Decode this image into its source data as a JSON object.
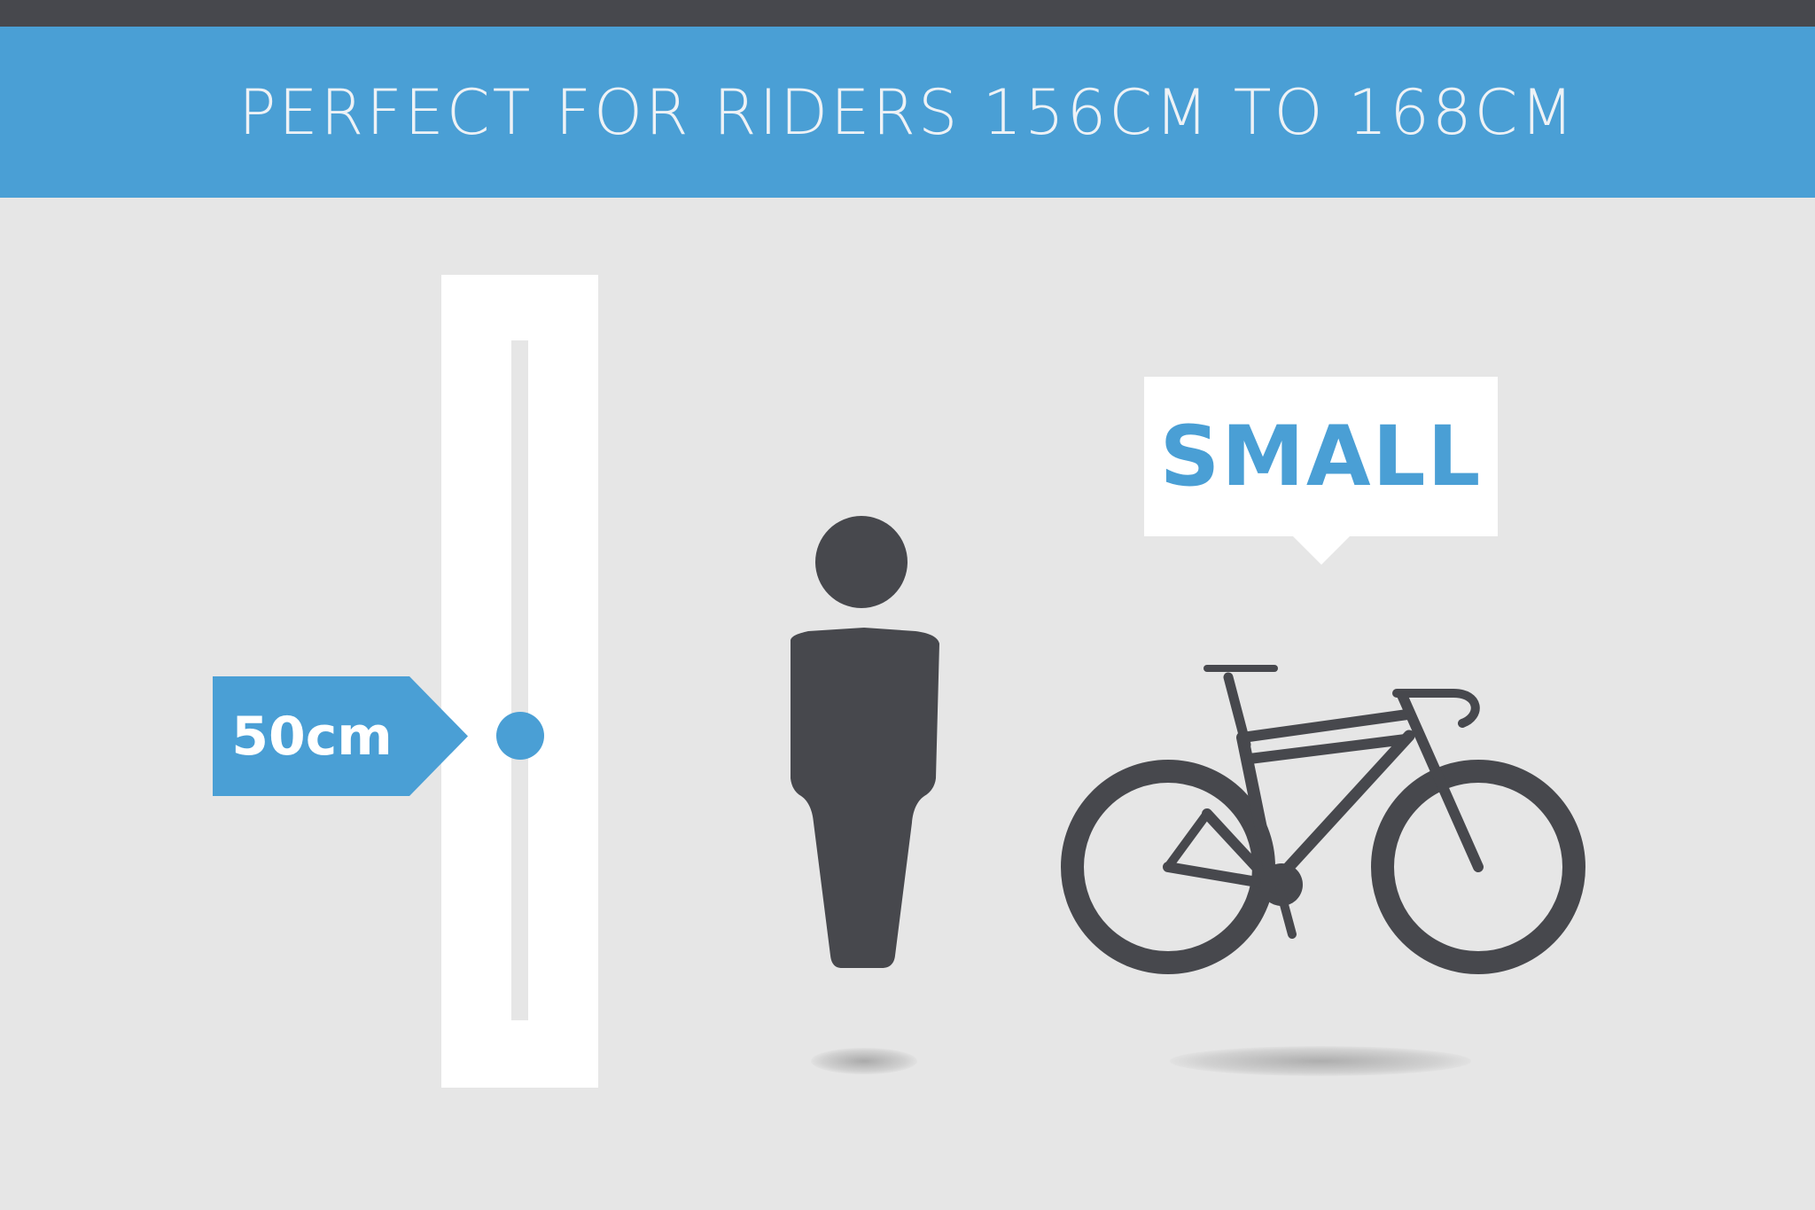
{
  "header": {
    "title": "PERFECT FOR RIDERS 156CM TO 168CM"
  },
  "gauge": {
    "marker_label": "50cm",
    "marker_icon": "circle-marker-icon"
  },
  "size_callout": {
    "label": "SMALL"
  },
  "icons": {
    "rider": "person-icon",
    "bike": "road-bike-icon"
  },
  "colors": {
    "accent": "#4a9fd5",
    "dark": "#47484d",
    "background": "#e6e6e6",
    "panel": "#ffffff"
  }
}
